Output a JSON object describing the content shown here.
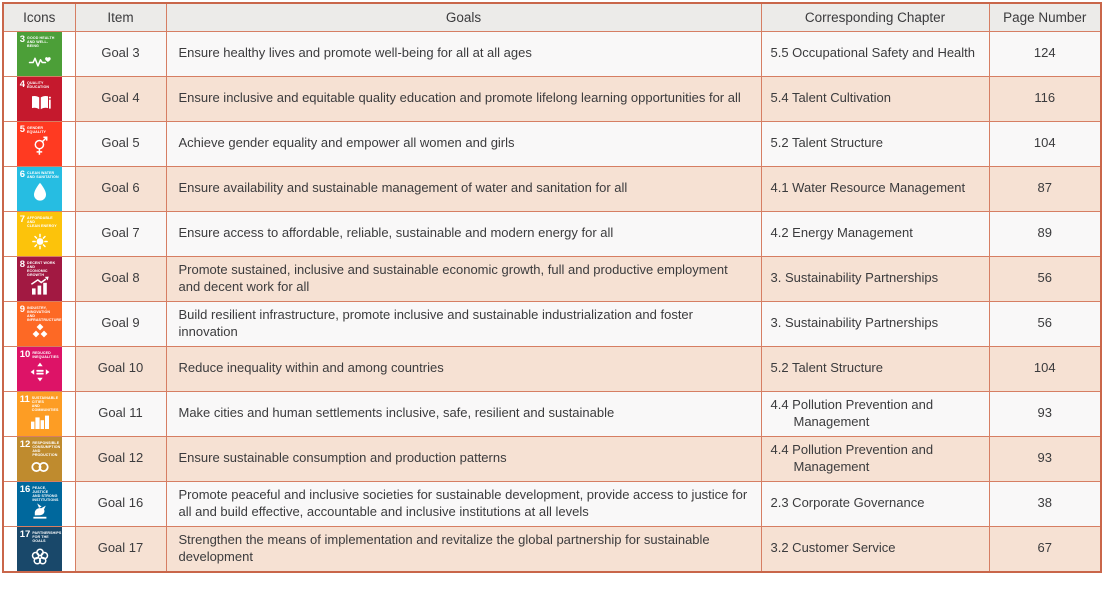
{
  "colors": {
    "grid_line": "#d67e63",
    "outer_border": "#c9664a",
    "header_bg": "#ecebe9",
    "row_plain": "#f9f8f8",
    "row_peach": "#f6e1d3",
    "text": "#3b3b3d"
  },
  "table": {
    "headers": {
      "icons": "Icons",
      "item": "Item",
      "goals": "Goals",
      "chapter": "Corresponding Chapter",
      "page": "Page Number"
    },
    "rows": [
      {
        "goal_number": "3",
        "icon": {
          "name": "heartbeat-heart-icon",
          "color": "#4C9F38",
          "label": "GOOD HEALTH\nAND WELL-BEING"
        },
        "item": "Goal 3",
        "goal_text": "Ensure healthy lives and promote well-being for all at all ages",
        "chapter": "5.5 Occupational Safety and Health",
        "page": "124"
      },
      {
        "goal_number": "4",
        "icon": {
          "name": "open-book-icon",
          "color": "#C5192D",
          "label": "QUALITY\nEDUCATION"
        },
        "item": "Goal 4",
        "goal_text": "Ensure inclusive and equitable quality education and promote lifelong learning opportunities for all",
        "chapter": "5.4 Talent Cultivation",
        "page": "116"
      },
      {
        "goal_number": "5",
        "icon": {
          "name": "gender-equality-icon",
          "color": "#FF3A21",
          "label": "GENDER\nEQUALITY"
        },
        "item": "Goal 5",
        "goal_text": "Achieve gender equality and empower all women and girls",
        "chapter": "5.2 Talent Structure",
        "page": "104"
      },
      {
        "goal_number": "6",
        "icon": {
          "name": "water-drop-icon",
          "color": "#26BDE2",
          "label": "CLEAN WATER\nAND SANITATION"
        },
        "item": "Goal 6",
        "goal_text": "Ensure availability and sustainable management of water and sanitation for all",
        "chapter": "4.1 Water Resource Management",
        "page": "87"
      },
      {
        "goal_number": "7",
        "icon": {
          "name": "sun-icon",
          "color": "#FCC30B",
          "label": "AFFORDABLE AND\nCLEAN ENERGY"
        },
        "item": "Goal 7",
        "goal_text": "Ensure access to affordable, reliable, sustainable and modern energy for all",
        "chapter": "4.2 Energy Management",
        "page": "89"
      },
      {
        "goal_number": "8",
        "icon": {
          "name": "growth-chart-arrow-icon",
          "color": "#A21942",
          "label": "DECENT WORK AND\nECONOMIC GROWTH"
        },
        "item": "Goal 8",
        "goal_text": "Promote sustained, inclusive and sustainable economic growth, full and productive employment and decent work for all",
        "chapter": "3. Sustainability Partnerships",
        "page": "56"
      },
      {
        "goal_number": "9",
        "icon": {
          "name": "building-blocks-icon",
          "color": "#FD6925",
          "label": "INDUSTRY, INNOVATION\nAND INFRASTRUCTURE"
        },
        "item": "Goal 9",
        "goal_text": "Build resilient infrastructure, promote inclusive and sustainable industrialization and foster innovation",
        "chapter": "3. Sustainability Partnerships",
        "page": "56"
      },
      {
        "goal_number": "10",
        "icon": {
          "name": "equality-arrows-icon",
          "color": "#DD1367",
          "label": "REDUCED\nINEQUALITIES"
        },
        "item": "Goal 10",
        "goal_text": "Reduce inequality within and among countries",
        "chapter": "5.2 Talent Structure",
        "page": "104"
      },
      {
        "goal_number": "11",
        "icon": {
          "name": "city-skyline-icon",
          "color": "#FD9D24",
          "label": "SUSTAINABLE CITIES\nAND COMMUNITIES"
        },
        "item": "Goal 11",
        "goal_text": "Make cities and human settlements inclusive, safe, resilient and sustainable",
        "chapter": "4.4 Pollution Prevention and Management",
        "page": "93"
      },
      {
        "goal_number": "12",
        "icon": {
          "name": "infinity-loop-icon",
          "color": "#BF8B2E",
          "label": "RESPONSIBLE\nCONSUMPTION\nAND PRODUCTION"
        },
        "item": "Goal 12",
        "goal_text": "Ensure sustainable consumption and production patterns",
        "chapter": "4.4 Pollution Prevention and Management",
        "page": "93"
      },
      {
        "goal_number": "16",
        "icon": {
          "name": "dove-gavel-icon",
          "color": "#00689D",
          "label": "PEACE, JUSTICE\nAND STRONG\nINSTITUTIONS"
        },
        "item": "Goal 16",
        "goal_text": "Promote peaceful and inclusive societies for sustainable development, provide access to justice for all and build effective, accountable and inclusive institutions at all levels",
        "chapter": "2.3 Corporate Governance",
        "page": "38"
      },
      {
        "goal_number": "17",
        "icon": {
          "name": "interlocking-circles-icon",
          "color": "#19486A",
          "label": "PARTNERSHIPS\nFOR THE GOALS"
        },
        "item": "Goal 17",
        "goal_text": "Strengthen the means of implementation and revitalize the global partnership for sustainable development",
        "chapter": "3.2 Customer Service",
        "page": "67"
      }
    ]
  }
}
